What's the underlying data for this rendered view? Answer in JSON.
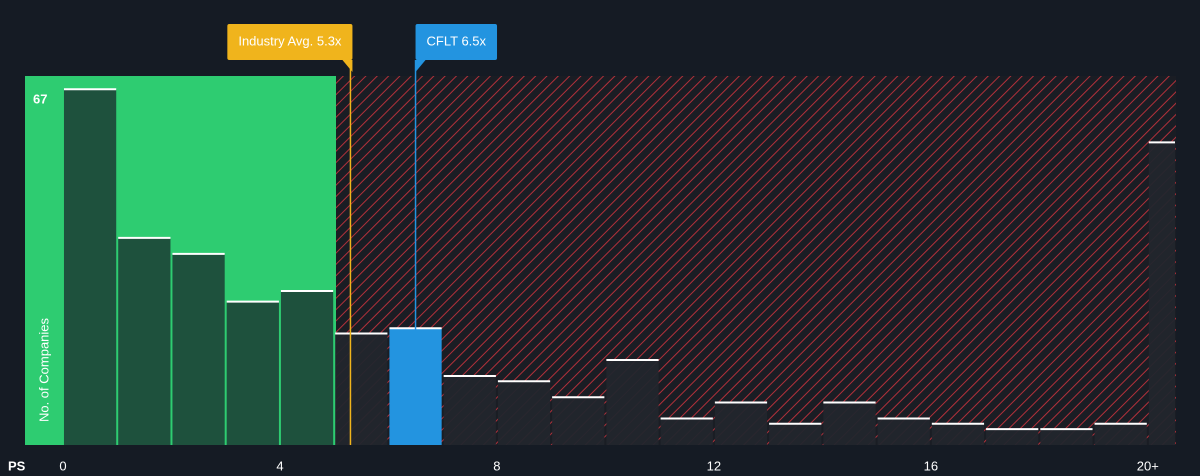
{
  "chart_data": {
    "type": "histogram",
    "x_label": "PS",
    "y_label": "No. of Companies",
    "bins": [
      0,
      1,
      2,
      3,
      4,
      5,
      6,
      7,
      8,
      9,
      10,
      11,
      12,
      13,
      14,
      15,
      16,
      17,
      18,
      19,
      20,
      21
    ],
    "values": [
      67,
      39,
      36,
      27,
      29,
      21,
      22,
      13,
      12,
      9,
      16,
      5,
      8,
      4,
      8,
      5,
      4,
      3,
      3,
      4,
      57
    ],
    "xlim": [
      -0.7,
      20.52
    ],
    "ylim": [
      0,
      69.5
    ],
    "xticks": [
      0,
      4,
      8,
      12,
      16,
      {
        "value": 20,
        "label": "20+"
      }
    ],
    "yticks": [
      67
    ],
    "annotations": [
      {
        "text": "Industry Avg. 5.3x",
        "x": 5.3,
        "color": "#f0b41c"
      },
      {
        "text": "CFLT 6.5x",
        "x": 6.5,
        "color": "#2394e0"
      }
    ]
  }
}
